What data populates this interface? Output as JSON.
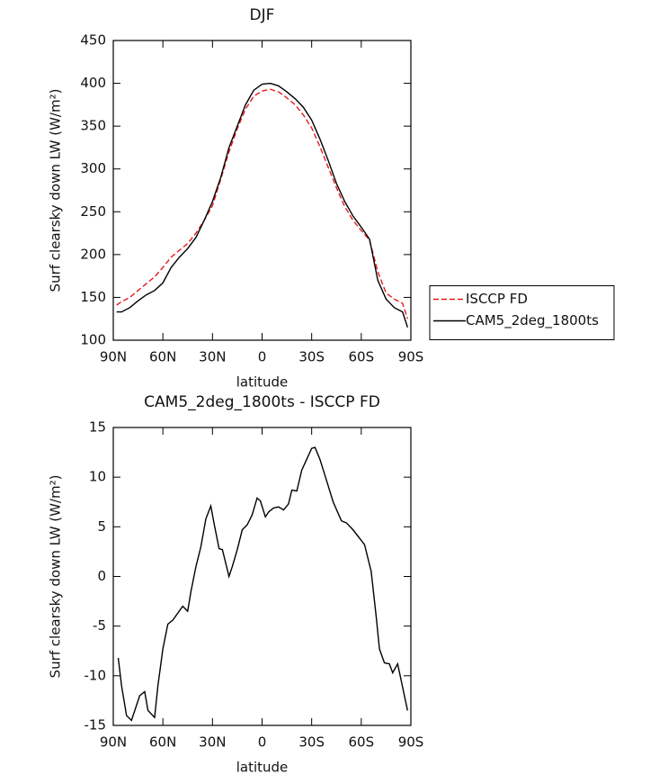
{
  "chart_data": [
    {
      "type": "line",
      "title": "DJF",
      "x_label": "latitude",
      "y_label": "Surf clearsky down LW (W/m²)",
      "x": [
        88,
        85,
        80,
        75,
        70,
        65,
        60,
        55,
        50,
        45,
        40,
        35,
        30,
        25,
        20,
        15,
        10,
        5,
        0,
        -5,
        -10,
        -15,
        -20,
        -25,
        -30,
        -35,
        -40,
        -45,
        -50,
        -55,
        -60,
        -65,
        -70,
        -75,
        -80,
        -85,
        -88
      ],
      "series": [
        {
          "name": "ISCCP FD",
          "color": "#e31a1c",
          "linestyle": "dashed",
          "values": [
            141,
            145,
            150,
            158,
            166,
            174,
            185,
            197,
            205,
            213,
            225,
            240,
            257,
            288,
            320,
            347,
            370,
            385,
            391,
            393,
            390,
            383,
            375,
            363,
            348,
            326,
            302,
            278,
            256,
            240,
            228,
            217,
            180,
            155,
            148,
            143,
            125
          ]
        },
        {
          "name": "CAM5_2deg_1800ts",
          "color": "#000000",
          "linestyle": "solid",
          "values": [
            133,
            133,
            138,
            146,
            153,
            158,
            167,
            185,
            197,
            207,
            220,
            240,
            262,
            290,
            325,
            350,
            375,
            392,
            399,
            400,
            397,
            390,
            382,
            372,
            357,
            335,
            310,
            283,
            262,
            245,
            232,
            218,
            170,
            148,
            138,
            133,
            115
          ]
        }
      ],
      "xlim": [
        90,
        -90
      ],
      "xticks": [
        {
          "value": 90,
          "label": "90N"
        },
        {
          "value": 60,
          "label": "60N"
        },
        {
          "value": 30,
          "label": "30N"
        },
        0,
        {
          "value": -30,
          "label": "30S"
        },
        {
          "value": -60,
          "label": "60S"
        },
        {
          "value": -90,
          "label": "90S"
        }
      ],
      "ylim": [
        100,
        450
      ],
      "yticks": [
        100,
        150,
        200,
        250,
        300,
        350,
        400,
        450
      ],
      "legend": "right"
    },
    {
      "type": "line",
      "title": "CAM5_2deg_1800ts - ISCCP FD",
      "x_label": "latitude",
      "y_label": "Surf clearsky down LW (W/m²)",
      "x": [
        87,
        85,
        82,
        79,
        74,
        71,
        69,
        65,
        63,
        60,
        57,
        54,
        48,
        45,
        43,
        40,
        37,
        34,
        31,
        29,
        26,
        24,
        20,
        18,
        15,
        12,
        9,
        6,
        3,
        1,
        -2,
        -4,
        -7,
        -10,
        -13,
        -16,
        -18,
        -21,
        -24,
        -27,
        -30,
        -32,
        -35,
        -38,
        -43,
        -48,
        -51,
        -55,
        -62,
        -66,
        -69,
        -71,
        -74,
        -77,
        -79,
        -82,
        -88
      ],
      "values": [
        -8.2,
        -11,
        -14,
        -14.5,
        -12,
        -11.6,
        -13.5,
        -14.2,
        -11,
        -7.3,
        -4.8,
        -4.4,
        -3,
        -3.5,
        -1.5,
        1,
        3,
        5.8,
        7.1,
        5.3,
        2.8,
        2.7,
        0,
        1,
        2.7,
        4.7,
        5.2,
        6.2,
        7.9,
        7.6,
        6,
        6.5,
        6.9,
        7,
        6.7,
        7.3,
        8.7,
        8.6,
        10.7,
        11.8,
        12.9,
        13,
        11.8,
        10.2,
        7.5,
        5.6,
        5.4,
        4.7,
        3.2,
        0.5,
        -4,
        -7.3,
        -8.7,
        -8.8,
        -9.7,
        -8.8,
        -13.5
      ],
      "color": "#000000",
      "xlim": [
        90,
        -90
      ],
      "xticks": [
        {
          "value": 90,
          "label": "90N"
        },
        {
          "value": 60,
          "label": "60N"
        },
        {
          "value": 30,
          "label": "30N"
        },
        0,
        {
          "value": -30,
          "label": "30S"
        },
        {
          "value": -60,
          "label": "60S"
        },
        {
          "value": -90,
          "label": "90S"
        }
      ],
      "ylim": [
        -15,
        15
      ],
      "yticks": [
        -15,
        -10,
        -5,
        0,
        5,
        10,
        15
      ]
    }
  ]
}
